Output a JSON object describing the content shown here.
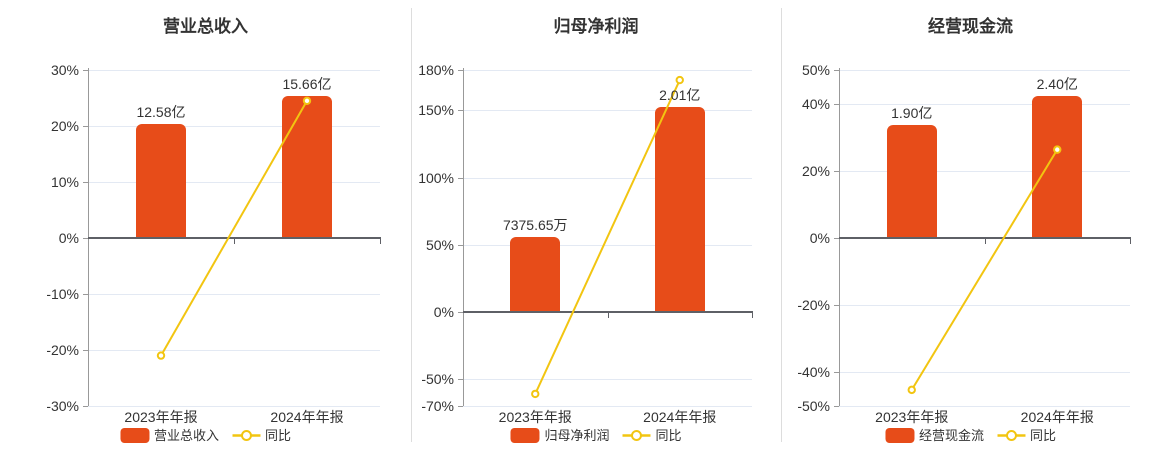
{
  "colors": {
    "bar": "#e74c19",
    "line": "#f2c511",
    "grid": "#e3e9f3",
    "zero_axis": "#5e6066",
    "y_axis": "#999999",
    "divider": "#dddddd",
    "text": "#333333"
  },
  "chart_data": [
    {
      "type": "bar",
      "title": "营业总收入",
      "categories": [
        "2023年年报",
        "2024年年报"
      ],
      "bar_series": {
        "name": "营业总收入",
        "value_labels": [
          "12.58亿",
          "15.66亿"
        ],
        "plotted_pct": [
          20.4,
          25.4
        ]
      },
      "line_series": {
        "name": "同比",
        "values_pct": [
          -21,
          24.5
        ]
      },
      "y_axis": {
        "min": -30,
        "max": 30,
        "tick_labels": [
          "30%",
          "20%",
          "10%",
          "0%",
          "-10%",
          "-20%",
          "-30%"
        ]
      },
      "grid": true,
      "legend_position": "bottom"
    },
    {
      "type": "bar",
      "title": "归母净利润",
      "categories": [
        "2023年年报",
        "2024年年报"
      ],
      "bar_series": {
        "name": "归母净利润",
        "value_labels": [
          "7375.65万",
          "2.01亿"
        ],
        "plotted_pct": [
          55.8,
          152.5
        ]
      },
      "line_series": {
        "name": "同比",
        "values_pct": [
          -61,
          172.5
        ]
      },
      "y_axis": {
        "min": -70,
        "max": 180,
        "tick_labels": [
          "180%",
          "150%",
          "100%",
          "50%",
          "0%",
          "-50%",
          "-70%"
        ]
      },
      "grid": true,
      "legend_position": "bottom"
    },
    {
      "type": "bar",
      "title": "经营现金流",
      "categories": [
        "2023年年报",
        "2024年年报"
      ],
      "bar_series": {
        "name": "经营现金流",
        "value_labels": [
          "1.90亿",
          "2.40亿"
        ],
        "plotted_pct": [
          33.6,
          42.3
        ]
      },
      "line_series": {
        "name": "同比",
        "values_pct": [
          -45.2,
          26.3
        ]
      },
      "y_axis": {
        "min": -50,
        "max": 50,
        "tick_labels": [
          "50%",
          "40%",
          "20%",
          "0%",
          "-20%",
          "-40%",
          "-50%"
        ]
      },
      "grid": true,
      "legend_position": "bottom"
    }
  ]
}
